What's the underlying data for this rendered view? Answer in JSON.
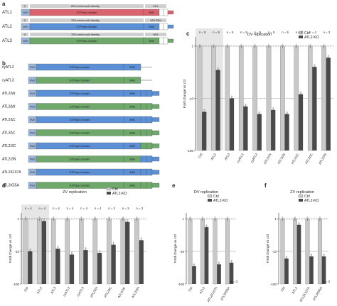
{
  "colors": {
    "atl1": "#d9636f",
    "atl2": "#5b8fd6",
    "atl3": "#6fa86b",
    "nvd": "#9bb5d9",
    "grey": "#cfcfcf",
    "ctrl_bar": "#c8c8c8",
    "ko_bar": "#4a4a4a",
    "shade": "#e6e6e6"
  },
  "panel_a": {
    "letter": "a",
    "rows": [
      {
        "name": "ATL1",
        "color_key": "atl1",
        "tail": "CTA",
        "y": 0
      },
      {
        "name": "ATL2",
        "color_key": "atl2",
        "tail": "CTA",
        "y": 1
      },
      {
        "name": "ATL3",
        "color_key": "atl3",
        "tail": "",
        "y": 2
      }
    ],
    "identity": [
      {
        "text": "69% amino acid identity",
        "sub": "61%"
      },
      {
        "text": "73% amino acid identity",
        "sub": "69%  33%"
      },
      {
        "text": "70% amino acid identity",
        "sub": "59%"
      }
    ],
    "nvd_label": "NVD",
    "gtpase_label": "GTPase domain",
    "hb_label": "3HB",
    "x_label": "X"
  },
  "panel_b": {
    "letter": "b",
    "constructs": [
      {
        "name": "cyATL2",
        "segments": [
          "atl2",
          "atl2",
          "atl2"
        ],
        "tail": false
      },
      {
        "name": "cyATL3",
        "segments": [
          "atl3",
          "atl3",
          "atl3"
        ],
        "tail": false
      },
      {
        "name": "ATL2ΔN",
        "segments": [
          "atl2",
          "atl2",
          "atl2"
        ],
        "tail": true,
        "tail_color": "atl2"
      },
      {
        "name": "ATL3ΔN",
        "segments": [
          "atl3",
          "atl3",
          "atl3"
        ],
        "tail": true,
        "tail_color": "atl3"
      },
      {
        "name": "ATL2ΔC",
        "segments": [
          "atl2",
          "atl2",
          "atl2"
        ],
        "tail": true,
        "tail_color": "atl2"
      },
      {
        "name": "ATL3ΔC",
        "segments": [
          "atl3",
          "atl3",
          "atl3"
        ],
        "tail": true,
        "tail_color": "atl3"
      },
      {
        "name": "ATL2/3C",
        "segments": [
          "atl2",
          "atl2",
          "atl2"
        ],
        "tail": true,
        "tail_color": "atl3"
      },
      {
        "name": "ATL2/3N",
        "segments": [
          "atl3",
          "atl3",
          "atl3"
        ],
        "tail": true,
        "tail_color": "atl2"
      },
      {
        "name": "ATL2K107A",
        "segments": [
          "atl2",
          "atl2",
          "atl2"
        ],
        "tail": true,
        "tail_color": "atl2"
      },
      {
        "name": "ATL3K55A",
        "segments": [
          "atl3",
          "atl3",
          "atl3"
        ],
        "tail": true,
        "tail_color": "atl3"
      }
    ]
  },
  "legend": {
    "ctrl": "Ctrl",
    "ko": "ATL2-KO"
  },
  "chart_data": [
    {
      "panel": "c",
      "type": "bar",
      "title": "DV replication",
      "ylabel": "Fold change vs ctrl",
      "yscale": "log",
      "ylim": [
        0.01,
        1.5
      ],
      "yticks": [
        "1",
        "-10",
        "-100"
      ],
      "categories": [
        "Ctrl",
        "ATL2",
        "ATL3",
        "cyATL2",
        "cyATL3",
        "ATL2ΔN",
        "ATL3ΔN",
        "ATL2ΔC",
        "ATL3ΔC",
        "ATL2/3N"
      ],
      "n_labels": [
        "n = 5",
        "n = 5",
        "n = 5",
        "n = 5",
        "n = 5",
        "n = 5",
        "n = 5",
        "n = 4",
        "n = 4",
        "n = 3"
      ],
      "series": [
        {
          "name": "Ctrl",
          "values": [
            1.0,
            1.0,
            1.0,
            1.0,
            1.0,
            1.0,
            1.0,
            1.0,
            1.0,
            1.0
          ]
        },
        {
          "name": "ATL2-KO",
          "values": [
            0.055,
            0.35,
            0.1,
            0.07,
            0.05,
            0.06,
            0.05,
            0.12,
            0.4,
            0.6
          ]
        }
      ]
    },
    {
      "panel": "d",
      "type": "bar",
      "title": "ZV replication",
      "ylabel": "Fold change vs ctrl",
      "yscale": "log",
      "ylim": [
        0.01,
        1.5
      ],
      "yticks": [
        "1",
        "-10",
        "-100"
      ],
      "categories": [
        "Ctrl",
        "ATL2",
        "ATL3",
        "cyATL2",
        "cyATL3",
        "ATL2ΔN",
        "ATL2ΔC",
        "ATL2/3C",
        "ATL2/3N"
      ],
      "n_labels": [
        "n = 4",
        "n = 4",
        "n = 4",
        "n = 4",
        "n = 4",
        "n = 4",
        "n = 3",
        "n = 3",
        "n = 3"
      ],
      "series": [
        {
          "name": "Ctrl",
          "values": [
            1.0,
            1.0,
            1.0,
            1.0,
            1.0,
            1.0,
            1.0,
            1.0,
            1.0
          ]
        },
        {
          "name": "ATL2-KO",
          "values": [
            0.1,
            0.85,
            0.12,
            0.08,
            0.11,
            0.09,
            0.16,
            0.8,
            0.22
          ]
        }
      ]
    },
    {
      "panel": "e",
      "type": "bar",
      "title": "DV replication",
      "ylabel": "Fold change vs ctrl",
      "yscale": "log",
      "ylim": [
        0.01,
        1.5
      ],
      "yticks": [
        "1",
        "-10",
        "-100"
      ],
      "categories": [
        "Ctrl",
        "ATL2",
        "ATL2K107A",
        "ATL3K55A"
      ],
      "n_labels": [
        "n = 3"
      ],
      "series": [
        {
          "name": "Ctrl",
          "values": [
            1.0,
            1.0,
            1.0,
            1.0
          ]
        },
        {
          "name": "ATL2-KO",
          "values": [
            0.035,
            0.55,
            0.04,
            0.045
          ]
        }
      ]
    },
    {
      "panel": "f",
      "type": "bar",
      "title": "ZV replication",
      "ylabel": "Fold change vs ctrl",
      "yscale": "log",
      "ylim": [
        0.01,
        1.5
      ],
      "yticks": [
        "1",
        "-10",
        "-100"
      ],
      "categories": [
        "Ctrl",
        "ATL2",
        "ATL2K107A",
        "ATL3K55A"
      ],
      "n_labels": [
        "n = 3"
      ],
      "series": [
        {
          "name": "Ctrl",
          "values": [
            1.0,
            1.0,
            1.0,
            1.0
          ]
        },
        {
          "name": "ATL2-KO",
          "values": [
            0.06,
            0.65,
            0.07,
            0.07
          ]
        }
      ]
    }
  ]
}
